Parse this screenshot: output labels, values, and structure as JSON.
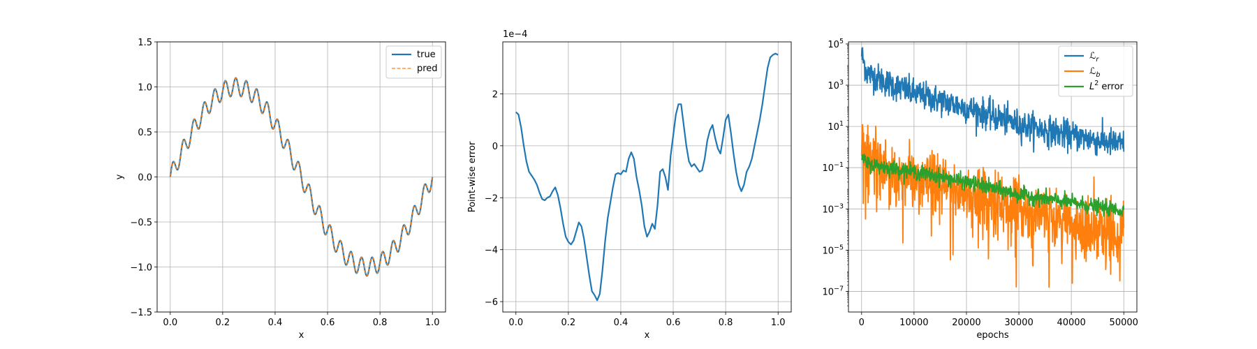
{
  "chart_data": [
    {
      "type": "line",
      "xlabel": "x",
      "ylabel": "y",
      "xlim": [
        -0.05,
        1.05
      ],
      "ylim": [
        -1.5,
        1.5
      ],
      "xticks": [
        0.0,
        0.2,
        0.4,
        0.6,
        0.8,
        1.0
      ],
      "xtick_labels": [
        "0.0",
        "0.2",
        "0.4",
        "0.6",
        "0.8",
        "1.0"
      ],
      "yticks": [
        -1.5,
        -1.0,
        -0.5,
        0.0,
        0.5,
        1.0,
        1.5
      ],
      "ytick_labels": [
        "−1.5",
        "−1.0",
        "−0.5",
        "0.0",
        "0.5",
        "1.0",
        "1.5"
      ],
      "grid": true,
      "legend_position": "top-right",
      "series": [
        {
          "name": "true",
          "color": "#1f77b4",
          "style": "solid",
          "formula": "sin(2*pi*x) + 0.1*sin(50*pi*x)"
        },
        {
          "name": "pred",
          "color": "#ff7f0e",
          "style": "dashed",
          "formula": "sin(2*pi*x) + 0.1*sin(50*pi*x)"
        }
      ]
    },
    {
      "type": "line",
      "xlabel": "x",
      "ylabel": "Point-wise error",
      "offset_text": "1e−4",
      "xlim": [
        -0.05,
        1.05
      ],
      "ylim": [
        -6.4,
        4.0
      ],
      "xticks": [
        0.0,
        0.2,
        0.4,
        0.6,
        0.8,
        1.0
      ],
      "xtick_labels": [
        "0.0",
        "0.2",
        "0.4",
        "0.6",
        "0.8",
        "1.0"
      ],
      "yticks": [
        -6,
        -4,
        -2,
        0,
        2
      ],
      "ytick_labels": [
        "−6",
        "−4",
        "−2",
        "0",
        "2"
      ],
      "grid": true,
      "series": [
        {
          "color": "#1f77b4",
          "x": [
            0.0,
            0.01,
            0.02,
            0.03,
            0.04,
            0.05,
            0.06,
            0.07,
            0.08,
            0.09,
            0.1,
            0.11,
            0.12,
            0.13,
            0.14,
            0.15,
            0.16,
            0.17,
            0.18,
            0.19,
            0.2,
            0.21,
            0.22,
            0.23,
            0.24,
            0.25,
            0.26,
            0.27,
            0.28,
            0.29,
            0.3,
            0.31,
            0.32,
            0.33,
            0.34,
            0.35,
            0.36,
            0.37,
            0.38,
            0.39,
            0.4,
            0.41,
            0.42,
            0.43,
            0.44,
            0.45,
            0.46,
            0.47,
            0.48,
            0.49,
            0.5,
            0.51,
            0.52,
            0.53,
            0.54,
            0.55,
            0.56,
            0.57,
            0.58,
            0.59,
            0.6,
            0.61,
            0.62,
            0.63,
            0.64,
            0.65,
            0.66,
            0.67,
            0.68,
            0.69,
            0.7,
            0.71,
            0.72,
            0.73,
            0.74,
            0.75,
            0.76,
            0.77,
            0.78,
            0.79,
            0.8,
            0.81,
            0.82,
            0.83,
            0.84,
            0.85,
            0.86,
            0.87,
            0.88,
            0.89,
            0.9,
            0.91,
            0.92,
            0.93,
            0.94,
            0.95,
            0.96,
            0.97,
            0.98,
            0.99,
            1.0
          ],
          "y": [
            1.3,
            1.2,
            0.7,
            0.0,
            -0.6,
            -1.0,
            -1.15,
            -1.3,
            -1.5,
            -1.8,
            -2.05,
            -2.1,
            -2.0,
            -1.95,
            -1.75,
            -1.6,
            -1.9,
            -2.4,
            -3.0,
            -3.5,
            -3.7,
            -3.8,
            -3.65,
            -3.3,
            -2.95,
            -3.1,
            -3.6,
            -4.3,
            -5.0,
            -5.6,
            -5.75,
            -5.95,
            -5.7,
            -4.8,
            -3.7,
            -2.8,
            -2.2,
            -1.6,
            -1.1,
            -1.05,
            -1.1,
            -0.95,
            -1.0,
            -0.5,
            -0.25,
            -0.5,
            -1.2,
            -1.7,
            -2.3,
            -3.1,
            -3.5,
            -3.3,
            -3.0,
            -3.2,
            -2.3,
            -1.0,
            -0.9,
            -1.2,
            -1.7,
            -0.4,
            0.4,
            1.2,
            1.6,
            1.6,
            0.8,
            0.0,
            -0.6,
            -0.8,
            -0.7,
            -0.85,
            -1.0,
            -0.95,
            -0.5,
            0.2,
            0.6,
            0.8,
            0.3,
            -0.1,
            -0.3,
            0.3,
            1.0,
            1.2,
            0.5,
            -0.3,
            -1.0,
            -1.5,
            -1.75,
            -1.5,
            -1.0,
            -0.8,
            -0.5,
            0.0,
            0.5,
            1.0,
            1.6,
            2.3,
            3.0,
            3.4,
            3.5,
            3.55,
            3.5
          ]
        }
      ]
    },
    {
      "type": "line",
      "xlabel": "epochs",
      "ylabel": "",
      "log_y": true,
      "xlim": [
        -2500,
        52500
      ],
      "ylim_log10": [
        -8,
        5.1
      ],
      "xticks": [
        0,
        10000,
        20000,
        30000,
        40000,
        50000
      ],
      "xtick_labels": [
        "0",
        "10000",
        "20000",
        "30000",
        "40000",
        "50000"
      ],
      "ytick_exponents": [
        -7,
        -5,
        -3,
        -1,
        1,
        3,
        5
      ],
      "grid": true,
      "legend_position": "top-right",
      "series": [
        {
          "name": "ℒ",
          "name_sub": "r",
          "color": "#1f77b4",
          "log10_trend": [
            [
              0,
              4.5
            ],
            [
              1000,
              3.6
            ],
            [
              5000,
              3.1
            ],
            [
              10000,
              2.6
            ],
            [
              20000,
              1.9
            ],
            [
              30000,
              1.1
            ],
            [
              40000,
              0.55
            ],
            [
              50000,
              0.1
            ]
          ],
          "noise": 0.35
        },
        {
          "name": "ℒ",
          "name_sub": "b",
          "color": "#ff7f0e",
          "log10_trend": [
            [
              0,
              0.6
            ],
            [
              1000,
              -0.4
            ],
            [
              5000,
              -1.0
            ],
            [
              10000,
              -1.6
            ],
            [
              20000,
              -2.2
            ],
            [
              30000,
              -3.0
            ],
            [
              40000,
              -3.7
            ],
            [
              50000,
              -4.2
            ]
          ],
          "noise": 0.7
        },
        {
          "name": "L",
          "name_sup": "2",
          "name_suffix": " error",
          "color": "#2ca02c",
          "log10_trend": [
            [
              0,
              -0.5
            ],
            [
              1000,
              -0.8
            ],
            [
              5000,
              -1.0
            ],
            [
              10000,
              -1.2
            ],
            [
              20000,
              -1.7
            ],
            [
              30000,
              -2.3
            ],
            [
              40000,
              -2.7
            ],
            [
              50000,
              -3.1
            ]
          ],
          "noise": 0.18
        }
      ]
    }
  ]
}
